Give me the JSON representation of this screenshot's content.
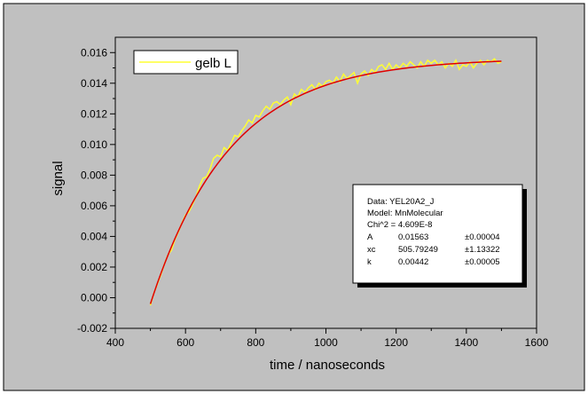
{
  "colors": {
    "background": "#c0c0c0",
    "page": "#ffffff",
    "data_series": "#ffff33",
    "fit_series": "#e00000",
    "fit_series_dark": "#b01010"
  },
  "chart_data": {
    "type": "line",
    "xlabel": "time / nanoseconds",
    "ylabel": "signal",
    "xlim": [
      400,
      1600
    ],
    "ylim": [
      -0.002,
      0.017
    ],
    "x_ticks": [
      400,
      600,
      800,
      1000,
      1200,
      1400,
      1600
    ],
    "y_ticks": [
      "-0.002",
      "0.000",
      "0.002",
      "0.004",
      "0.006",
      "0.008",
      "0.010",
      "0.012",
      "0.014",
      "0.016"
    ],
    "grid": false,
    "legend": {
      "position": "top-left",
      "entries": [
        "gelb L"
      ]
    },
    "series": [
      {
        "name": "gelb L",
        "style": "data",
        "x": [
          500,
          510,
          520,
          530,
          540,
          550,
          560,
          570,
          580,
          590,
          600,
          610,
          620,
          630,
          640,
          650,
          660,
          670,
          680,
          690,
          700,
          710,
          720,
          730,
          740,
          750,
          760,
          770,
          780,
          790,
          800,
          810,
          820,
          830,
          840,
          850,
          860,
          870,
          880,
          890,
          900,
          910,
          920,
          930,
          940,
          950,
          960,
          970,
          980,
          990,
          1000,
          1010,
          1020,
          1030,
          1040,
          1050,
          1060,
          1070,
          1080,
          1090,
          1100,
          1110,
          1120,
          1130,
          1140,
          1150,
          1160,
          1170,
          1180,
          1190,
          1200,
          1210,
          1220,
          1230,
          1240,
          1250,
          1260,
          1270,
          1280,
          1290,
          1300,
          1310,
          1320,
          1330,
          1340,
          1350,
          1360,
          1370,
          1380,
          1390,
          1400,
          1410,
          1420,
          1430,
          1440,
          1450,
          1460,
          1470,
          1480,
          1490,
          1500
        ],
        "y": [
          -0.0005,
          0.0003,
          0.0009,
          0.0015,
          0.0022,
          0.0028,
          0.0031,
          0.0038,
          0.0043,
          0.0049,
          0.0054,
          0.0056,
          0.0061,
          0.0066,
          0.0073,
          0.0078,
          0.0079,
          0.0084,
          0.0091,
          0.0093,
          0.0092,
          0.0098,
          0.0096,
          0.0101,
          0.0106,
          0.0105,
          0.0109,
          0.0112,
          0.0116,
          0.0114,
          0.0119,
          0.0118,
          0.0122,
          0.0125,
          0.0123,
          0.0127,
          0.0128,
          0.0126,
          0.0129,
          0.0131,
          0.0126,
          0.0133,
          0.0131,
          0.0136,
          0.0134,
          0.0137,
          0.0139,
          0.0136,
          0.014,
          0.0138,
          0.0141,
          0.0142,
          0.014,
          0.0144,
          0.0141,
          0.0146,
          0.0143,
          0.0145,
          0.0147,
          0.014,
          0.0146,
          0.0148,
          0.0145,
          0.0149,
          0.0147,
          0.0151,
          0.0152,
          0.0149,
          0.0153,
          0.0149,
          0.0152,
          0.015,
          0.0153,
          0.0151,
          0.0154,
          0.0152,
          0.015,
          0.0154,
          0.0151,
          0.0155,
          0.0153,
          0.0155,
          0.0152,
          0.0154,
          0.015,
          0.0153,
          0.0151,
          0.0155,
          0.0149,
          0.0152,
          0.0151,
          0.0154,
          0.015,
          0.0153,
          0.0155,
          0.0152,
          0.0155,
          0.0154,
          0.0156,
          0.0153,
          0.0154
        ]
      },
      {
        "style": "fit",
        "model": {
          "A": 0.01563,
          "xc": 505.79249,
          "k": 0.00442
        },
        "x_start": 500,
        "x_end": 1500,
        "step": 10
      }
    ],
    "annotation": {
      "lines": [
        "Data: YEL20A2_J",
        "Model: MnMolecular",
        "Chi^2 = 4.609E-8"
      ],
      "params": [
        {
          "name": "A",
          "value": "0.01563",
          "error": "±0.00004"
        },
        {
          "name": "xc",
          "value": "505.79249",
          "error": "±1.13322"
        },
        {
          "name": "k",
          "value": "0.00442",
          "error": "±0.00005"
        }
      ]
    }
  }
}
